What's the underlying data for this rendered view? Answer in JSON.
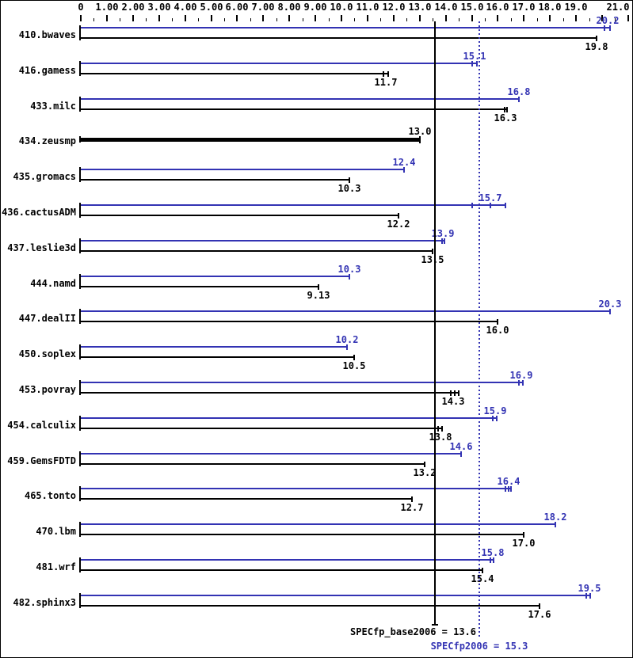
{
  "chart_data": {
    "type": "bar",
    "orientation": "horizontal",
    "axis": {
      "min": 0,
      "max": 21,
      "major_tick_step": 1,
      "minor_tick_step": 0.5,
      "tick_labels": [
        {
          "v": 0,
          "label": "0"
        },
        {
          "v": 1,
          "label": "1.00"
        },
        {
          "v": 2,
          "label": "2.00"
        },
        {
          "v": 3,
          "label": "3.00"
        },
        {
          "v": 4,
          "label": "4.00"
        },
        {
          "v": 5,
          "label": "5.00"
        },
        {
          "v": 6,
          "label": "6.00"
        },
        {
          "v": 7,
          "label": "7.00"
        },
        {
          "v": 8,
          "label": "8.00"
        },
        {
          "v": 9,
          "label": "9.00"
        },
        {
          "v": 10,
          "label": "10.0"
        },
        {
          "v": 11,
          "label": "11.0"
        },
        {
          "v": 12,
          "label": "12.0"
        },
        {
          "v": 13,
          "label": "13.0"
        },
        {
          "v": 14,
          "label": "14.0"
        },
        {
          "v": 15,
          "label": "15.0"
        },
        {
          "v": 16,
          "label": "16.0"
        },
        {
          "v": 17,
          "label": "17.0"
        },
        {
          "v": 18,
          "label": "18.0"
        },
        {
          "v": 19,
          "label": "19.0"
        },
        {
          "v": 21,
          "label": "21.0"
        }
      ]
    },
    "series_legend": [
      "peak (blue)",
      "base (black)"
    ],
    "benchmarks": [
      {
        "name": "410.bwaves",
        "peak": {
          "value": 20.2,
          "label": "20.2",
          "runs": [
            20.1,
            20.3
          ]
        },
        "base": {
          "value": 19.8,
          "label": "19.8"
        }
      },
      {
        "name": "416.gamess",
        "peak": {
          "value": 15.1,
          "label": "15.1",
          "runs": [
            15.0,
            15.2
          ]
        },
        "base": {
          "value": 11.7,
          "label": "11.7",
          "runs": [
            11.6,
            11.8
          ]
        }
      },
      {
        "name": "433.milc",
        "peak": {
          "value": 16.8,
          "label": "16.8"
        },
        "base": {
          "value": 16.3,
          "label": "16.3",
          "runs": [
            16.25,
            16.35
          ]
        }
      },
      {
        "name": "434.zeusmp",
        "base_only": true,
        "base": {
          "value": 13.0,
          "label": "13.0"
        }
      },
      {
        "name": "435.gromacs",
        "peak": {
          "value": 12.4,
          "label": "12.4"
        },
        "base": {
          "value": 10.3,
          "label": "10.3"
        }
      },
      {
        "name": "436.cactusADM",
        "peak": {
          "value": 15.7,
          "label": "15.7",
          "runs": [
            15.0,
            15.7,
            16.3
          ]
        },
        "base": {
          "value": 12.2,
          "label": "12.2"
        }
      },
      {
        "name": "437.leslie3d",
        "peak": {
          "value": 13.9,
          "label": "13.9",
          "runs": [
            13.85,
            13.95
          ]
        },
        "base": {
          "value": 13.5,
          "label": "13.5"
        }
      },
      {
        "name": "444.namd",
        "peak": {
          "value": 10.3,
          "label": "10.3"
        },
        "base": {
          "value": 9.13,
          "label": "9.13"
        }
      },
      {
        "name": "447.dealII",
        "peak": {
          "value": 20.3,
          "label": "20.3"
        },
        "base": {
          "value": 16.0,
          "label": "16.0"
        }
      },
      {
        "name": "450.soplex",
        "peak": {
          "value": 10.2,
          "label": "10.2"
        },
        "base": {
          "value": 10.5,
          "label": "10.5"
        }
      },
      {
        "name": "453.povray",
        "peak": {
          "value": 16.9,
          "label": "16.9",
          "runs": [
            16.8,
            16.95
          ]
        },
        "base": {
          "value": 14.3,
          "label": "14.3",
          "runs": [
            14.2,
            14.35,
            14.5
          ]
        }
      },
      {
        "name": "454.calculix",
        "peak": {
          "value": 15.9,
          "label": "15.9",
          "runs": [
            15.8,
            15.95
          ]
        },
        "base": {
          "value": 13.8,
          "label": "13.8",
          "runs": [
            13.7,
            13.85
          ]
        }
      },
      {
        "name": "459.GemsFDTD",
        "peak": {
          "value": 14.6,
          "label": "14.6"
        },
        "base": {
          "value": 13.2,
          "label": "13.2"
        }
      },
      {
        "name": "465.tonto",
        "peak": {
          "value": 16.4,
          "label": "16.4",
          "runs": [
            16.3,
            16.4,
            16.5
          ]
        },
        "base": {
          "value": 12.7,
          "label": "12.7"
        }
      },
      {
        "name": "470.lbm",
        "peak": {
          "value": 18.2,
          "label": "18.2"
        },
        "base": {
          "value": 17.0,
          "label": "17.0"
        }
      },
      {
        "name": "481.wrf",
        "peak": {
          "value": 15.8,
          "label": "15.8",
          "runs": [
            15.7,
            15.85
          ]
        },
        "base": {
          "value": 15.4,
          "label": "15.4"
        }
      },
      {
        "name": "482.sphinx3",
        "peak": {
          "value": 19.5,
          "label": "19.5",
          "runs": [
            19.4,
            19.55
          ]
        },
        "base": {
          "value": 17.6,
          "label": "17.6"
        }
      }
    ],
    "means": {
      "base": {
        "text": "SPECfp_base2006 = 13.6",
        "value": 13.6,
        "line_style": "solid"
      },
      "peak": {
        "text": "SPECfp2006 = 15.3",
        "value": 15.3,
        "line_style": "dotted"
      }
    },
    "colors": {
      "peak": "#3333b3",
      "base": "#000000",
      "background": "#ffffff"
    }
  }
}
